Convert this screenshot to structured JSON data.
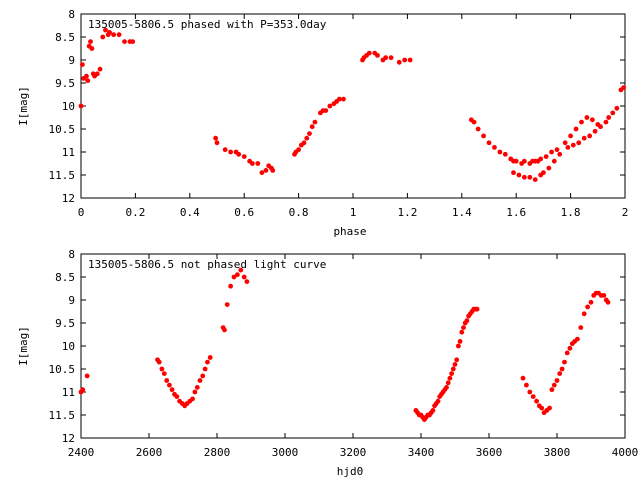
{
  "chart_data": [
    {
      "type": "scatter",
      "title": "135005-5806.5 phased with P=353.0day",
      "xlabel": "phase",
      "ylabel": "I[mag]",
      "xlim": [
        0,
        2
      ],
      "ylim": [
        8,
        12
      ],
      "y_inverted": true,
      "xticks": [
        0,
        0.2,
        0.4,
        0.6,
        0.8,
        1,
        1.2,
        1.4,
        1.6,
        1.8,
        2
      ],
      "xtick_labels": [
        "0",
        "0.2",
        "0.4",
        "0.6",
        "0.8",
        "1",
        "1.2",
        "1.4",
        "1.6",
        "1.8",
        "2"
      ],
      "yticks": [
        8,
        8.5,
        9,
        9.5,
        10,
        10.5,
        11,
        11.5,
        12
      ],
      "ytick_labels": [
        "8",
        "8.5",
        "9",
        "9.5",
        "10",
        "10.5",
        "11",
        "11.5",
        "12"
      ],
      "grid": false,
      "marker_color": "#ff0000",
      "series": [
        {
          "x": [
            0.0,
            0.005,
            0.01,
            0.02,
            0.025,
            0.03,
            0.035,
            0.04,
            0.045,
            0.05,
            0.06,
            0.07,
            0.08,
            0.09,
            0.1,
            0.105,
            0.12,
            0.14,
            0.16,
            0.18,
            0.19,
            0.495,
            0.5,
            0.53,
            0.55,
            0.57,
            0.58,
            0.6,
            0.62,
            0.63,
            0.65,
            0.665,
            0.68,
            0.69,
            0.7,
            0.705,
            0.785,
            0.79,
            0.8,
            0.81,
            0.82,
            0.83,
            0.84,
            0.85,
            0.86,
            0.88,
            0.89,
            0.9,
            0.915,
            0.93,
            0.94,
            0.95,
            0.965,
            1.035,
            1.04,
            1.05,
            1.06,
            1.08,
            1.09,
            1.11,
            1.12,
            1.14,
            1.17,
            1.19,
            1.21,
            1.435,
            1.445,
            1.46,
            1.48,
            1.5,
            1.52,
            1.54,
            1.56,
            1.58,
            1.59,
            1.6,
            1.62,
            1.63,
            1.65,
            1.66,
            1.67,
            1.68,
            1.69,
            1.71,
            1.73,
            1.75,
            1.78,
            1.8,
            1.82,
            1.84,
            1.86,
            1.88,
            1.9,
            1.59,
            1.61,
            1.63,
            1.65,
            1.67,
            1.69,
            1.7,
            1.72,
            1.74,
            1.76,
            1.79,
            1.81,
            1.83,
            1.85,
            1.87,
            1.89,
            1.91,
            1.93,
            1.94,
            1.955,
            1.97,
            1.985,
            1.995
          ],
          "y": [
            10.0,
            9.1,
            9.4,
            9.35,
            9.45,
            8.7,
            8.6,
            8.75,
            9.3,
            9.35,
            9.3,
            9.2,
            8.5,
            8.35,
            8.45,
            8.4,
            8.45,
            8.45,
            8.6,
            8.6,
            8.6,
            10.7,
            10.8,
            10.95,
            11.0,
            11.0,
            11.05,
            11.1,
            11.2,
            11.25,
            11.25,
            11.45,
            11.4,
            11.3,
            11.35,
            11.4,
            11.05,
            11.0,
            10.95,
            10.85,
            10.8,
            10.7,
            10.6,
            10.45,
            10.35,
            10.15,
            10.1,
            10.1,
            10.0,
            9.95,
            9.9,
            9.85,
            9.85,
            9.0,
            8.95,
            8.9,
            8.85,
            8.85,
            8.9,
            9.0,
            8.95,
            8.95,
            9.05,
            9.0,
            9.0,
            10.3,
            10.35,
            10.5,
            10.65,
            10.8,
            10.9,
            11.0,
            11.05,
            11.15,
            11.2,
            11.2,
            11.25,
            11.2,
            11.25,
            11.2,
            11.2,
            11.2,
            11.15,
            11.1,
            11.0,
            10.95,
            10.8,
            10.65,
            10.5,
            10.35,
            10.25,
            10.3,
            10.4,
            11.45,
            11.5,
            11.55,
            11.55,
            11.6,
            11.5,
            11.45,
            11.35,
            11.2,
            11.05,
            10.9,
            10.85,
            10.8,
            10.7,
            10.65,
            10.55,
            10.45,
            10.35,
            10.25,
            10.15,
            10.05,
            9.65,
            9.6
          ]
        }
      ]
    },
    {
      "type": "scatter",
      "title": "135005-5806.5 not phased light curve",
      "xlabel": "hjd0",
      "ylabel": "I[mag]",
      "xlim": [
        2400,
        4000
      ],
      "ylim": [
        8,
        12
      ],
      "y_inverted": true,
      "xticks": [
        2400,
        2600,
        2800,
        3000,
        3200,
        3400,
        3600,
        3800,
        4000
      ],
      "xtick_labels": [
        "2400",
        "2600",
        "2800",
        "3000",
        "3200",
        "3400",
        "3600",
        "3800",
        "4000"
      ],
      "yticks": [
        8,
        8.5,
        9,
        9.5,
        10,
        10.5,
        11,
        11.5,
        12
      ],
      "ytick_labels": [
        "8",
        "8.5",
        "9",
        "9.5",
        "10",
        "10.5",
        "11",
        "11.5",
        "12"
      ],
      "grid": false,
      "marker_color": "#ff0000",
      "series": [
        {
          "x": [
            2400,
            2405,
            2418,
            2625,
            2630,
            2638,
            2645,
            2652,
            2660,
            2668,
            2675,
            2682,
            2690,
            2698,
            2705,
            2712,
            2720,
            2728,
            2735,
            2742,
            2750,
            2758,
            2765,
            2772,
            2780,
            2818,
            2822,
            2830,
            2840,
            2850,
            2860,
            2870,
            2880,
            2888,
            3385,
            3390,
            3395,
            3400,
            3405,
            3410,
            3415,
            3420,
            3425,
            3430,
            3435,
            3440,
            3445,
            3450,
            3455,
            3460,
            3465,
            3470,
            3475,
            3480,
            3485,
            3490,
            3495,
            3500,
            3505,
            3510,
            3515,
            3520,
            3525,
            3530,
            3535,
            3540,
            3545,
            3550,
            3555,
            3560,
            3565,
            3700,
            3710,
            3720,
            3730,
            3740,
            3748,
            3755,
            3762,
            3770,
            3778,
            3785,
            3792,
            3800,
            3808,
            3815,
            3822,
            3830,
            3838,
            3845,
            3852,
            3860,
            3870,
            3880,
            3890,
            3900,
            3908,
            3915,
            3922,
            3930,
            3938,
            3945,
            3950
          ],
          "y": [
            11.0,
            10.95,
            10.65,
            10.3,
            10.35,
            10.5,
            10.6,
            10.75,
            10.85,
            10.95,
            11.05,
            11.1,
            11.2,
            11.25,
            11.3,
            11.25,
            11.2,
            11.15,
            11.0,
            10.9,
            10.75,
            10.65,
            10.5,
            10.35,
            10.25,
            9.6,
            9.65,
            9.1,
            8.7,
            8.5,
            8.45,
            8.35,
            8.5,
            8.6,
            11.4,
            11.45,
            11.5,
            11.5,
            11.55,
            11.6,
            11.55,
            11.5,
            11.5,
            11.45,
            11.4,
            11.3,
            11.25,
            11.2,
            11.1,
            11.05,
            11.0,
            10.95,
            10.9,
            10.8,
            10.7,
            10.6,
            10.5,
            10.4,
            10.3,
            10.0,
            9.9,
            9.7,
            9.6,
            9.5,
            9.45,
            9.35,
            9.3,
            9.25,
            9.2,
            9.2,
            9.2,
            10.7,
            10.85,
            11.0,
            11.1,
            11.2,
            11.3,
            11.35,
            11.45,
            11.4,
            11.35,
            10.95,
            10.85,
            10.75,
            10.6,
            10.5,
            10.35,
            10.15,
            10.05,
            9.95,
            9.9,
            9.85,
            9.6,
            9.3,
            9.15,
            9.05,
            8.9,
            8.85,
            8.85,
            8.9,
            8.9,
            9.0,
            9.05
          ]
        }
      ]
    }
  ]
}
